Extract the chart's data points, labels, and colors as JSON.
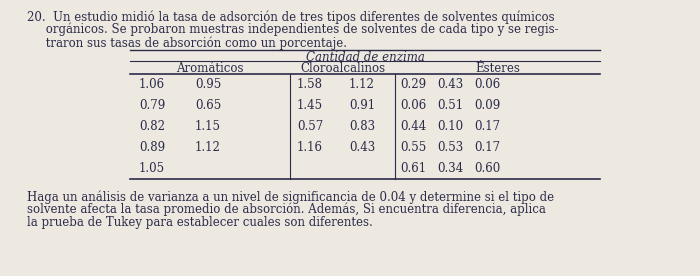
{
  "problem_number": "20.",
  "intro_line1": "20.  Un estudio midió la tasa de adsorción de tres tipos diferentes de solventes químicos",
  "intro_line2": "     orgánicos. Se probaron muestras independientes de solventes de cada tipo y se regis-",
  "intro_line3": "     traron sus tasas de absorción como un porcentaje.",
  "table_title": "Cantidad de enzima",
  "col_headers": [
    "Aromáticos",
    "Cloroalcalinos",
    "Ésteres"
  ],
  "aromatic_col1": [
    "1.06",
    "0.79",
    "0.82",
    "0.89",
    "1.05"
  ],
  "aromatic_col2": [
    "0.95",
    "0.65",
    "1.15",
    "1.12",
    ""
  ],
  "chloro_col1": [
    "1.58",
    "1.45",
    "0.57",
    "1.16",
    ""
  ],
  "chloro_col2": [
    "1.12",
    "0.91",
    "0.83",
    "0.43",
    ""
  ],
  "ester_col1": [
    "0.29",
    "0.06",
    "0.44",
    "0.55",
    "0.61"
  ],
  "ester_col2": [
    "0.43",
    "0.51",
    "0.10",
    "0.53",
    "0.34"
  ],
  "ester_col3": [
    "0.06",
    "0.09",
    "0.17",
    "0.17",
    "0.60"
  ],
  "footer_line1": "Haga un análisis de varianza a un nivel de significancia de 0.04 y determine si el tipo de",
  "footer_line2": "solvente afecta la tasa promedio de absorción. Además, Si encuentra diferencia, aplica",
  "footer_line3": "la prueba de Tukey para establecer cuales son diferentes.",
  "bg_color": "#ede8e0",
  "text_color": "#2c2c4a",
  "font_size": 8.5,
  "table_font_size": 8.5
}
